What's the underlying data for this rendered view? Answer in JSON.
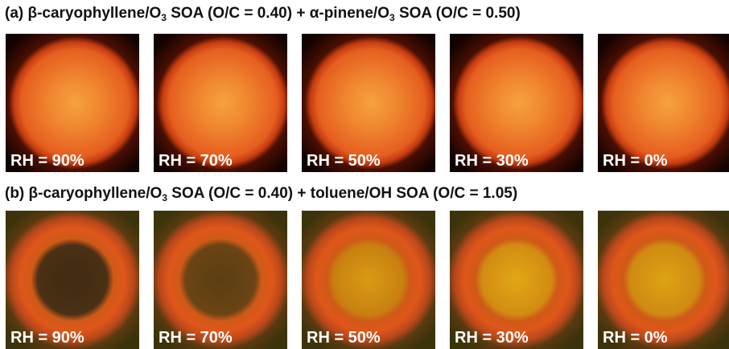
{
  "panels": [
    {
      "title": [
        "(a) β-caryophyllene/O",
        "3",
        " SOA (O/C = 0.40) + α-pinene/O",
        "3",
        " SOA (O/C = 0.50)"
      ],
      "labels": [
        "RH = 90%",
        "RH = 70%",
        "RH = 50%",
        "RH = 30%",
        "RH = 0%"
      ]
    },
    {
      "title": [
        "(b) β-caryophyllene/O",
        "3",
        " SOA (O/C = 0.40) + toluene/OH SOA (O/C = 1.05)"
      ],
      "labels": [
        "RH = 90%",
        "RH = 70%",
        "RH = 50%",
        "RH = 30%",
        "RH = 0%"
      ]
    }
  ]
}
